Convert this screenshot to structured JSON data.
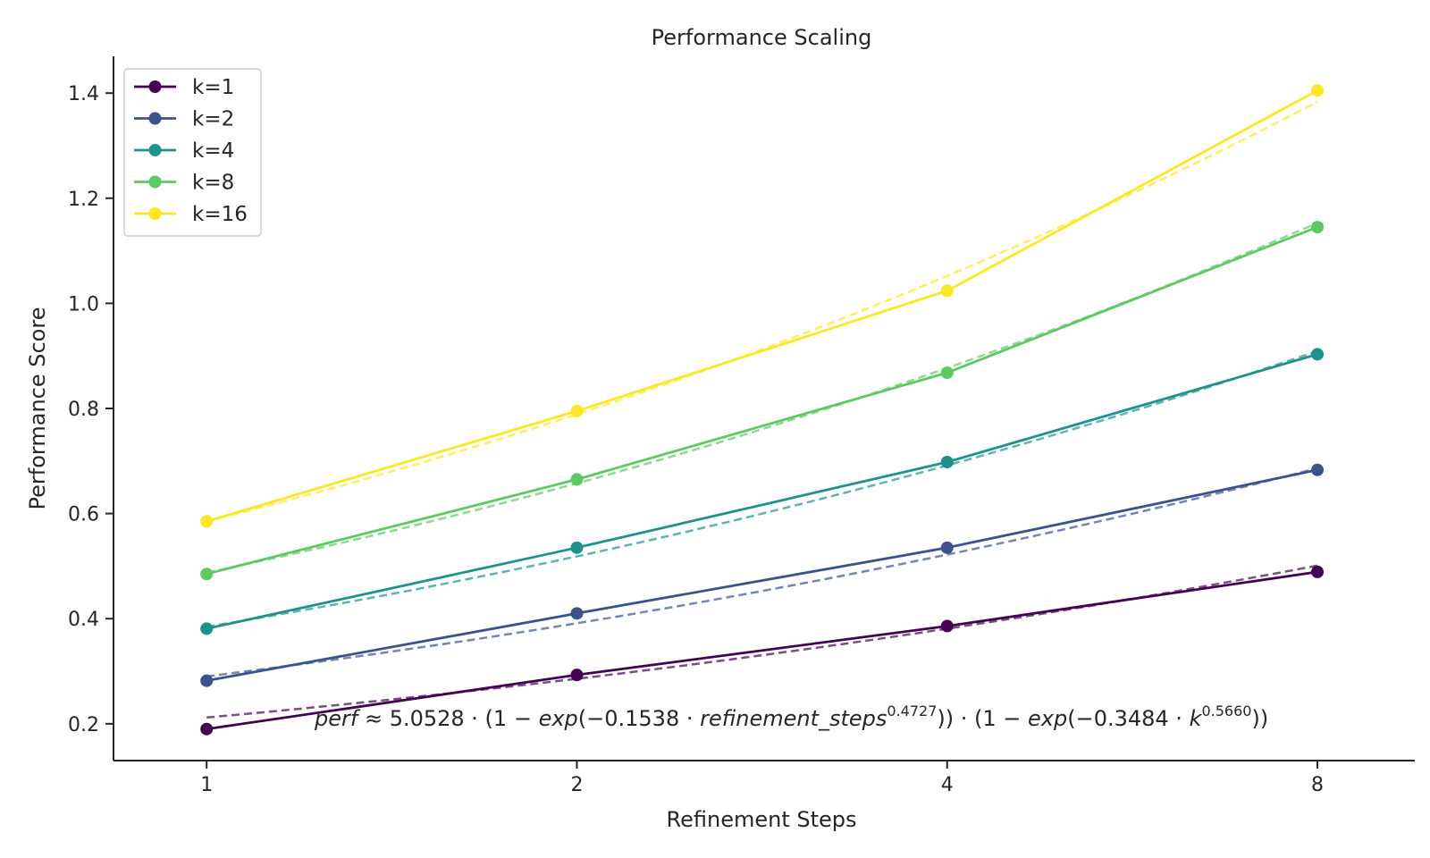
{
  "chart_data": {
    "type": "line",
    "title": "Performance Scaling",
    "xlabel": "Refinement Steps",
    "ylabel": "Performance Score",
    "x": [
      1,
      2,
      4,
      8
    ],
    "x_scale": "log2",
    "xlim": [
      0.84,
      9.6
    ],
    "ylim": [
      0.13,
      1.47
    ],
    "x_ticks": [
      1,
      2,
      4,
      8
    ],
    "x_tick_labels": [
      "1",
      "2",
      "4",
      "8"
    ],
    "y_ticks": [
      0.2,
      0.4,
      0.6,
      0.8,
      1.0,
      1.2,
      1.4
    ],
    "y_tick_labels": [
      "0.2",
      "0.4",
      "0.6",
      "0.8",
      "1.0",
      "1.2",
      "1.4"
    ],
    "grid": false,
    "legend_position": "top-left",
    "series": [
      {
        "name": "k=1",
        "k": 1,
        "color": "#440154",
        "values": [
          0.19,
          0.293,
          0.386,
          0.489
        ]
      },
      {
        "name": "k=2",
        "k": 2,
        "color": "#3b528b",
        "values": [
          0.282,
          0.41,
          0.535,
          0.683
        ]
      },
      {
        "name": "k=4",
        "k": 4,
        "color": "#21918c",
        "values": [
          0.381,
          0.535,
          0.698,
          0.903
        ]
      },
      {
        "name": "k=8",
        "k": 8,
        "color": "#5ec962",
        "values": [
          0.485,
          0.665,
          0.868,
          1.145
        ]
      },
      {
        "name": "k=16",
        "k": 16,
        "color": "#fde725",
        "values": [
          0.585,
          0.795,
          1.024,
          1.405
        ]
      }
    ],
    "fit": {
      "a": 5.0528,
      "b": 0.1538,
      "c": 0.4727,
      "d": 0.3484,
      "e": 0.566,
      "style": "dashed",
      "formula_parts": {
        "lhs": "perf",
        "approx": " ≈ 5.0528 · (1 − ",
        "exp1": "exp",
        "mid1": "(−0.1538 · ",
        "var1": "refinement_steps",
        "pow1": "0.4727",
        "mid2": ")) · (1 − ",
        "exp2": "exp",
        "mid3": "(−0.3484 · ",
        "var2": "k",
        "pow2": "0.5660",
        "end": "))"
      }
    }
  }
}
